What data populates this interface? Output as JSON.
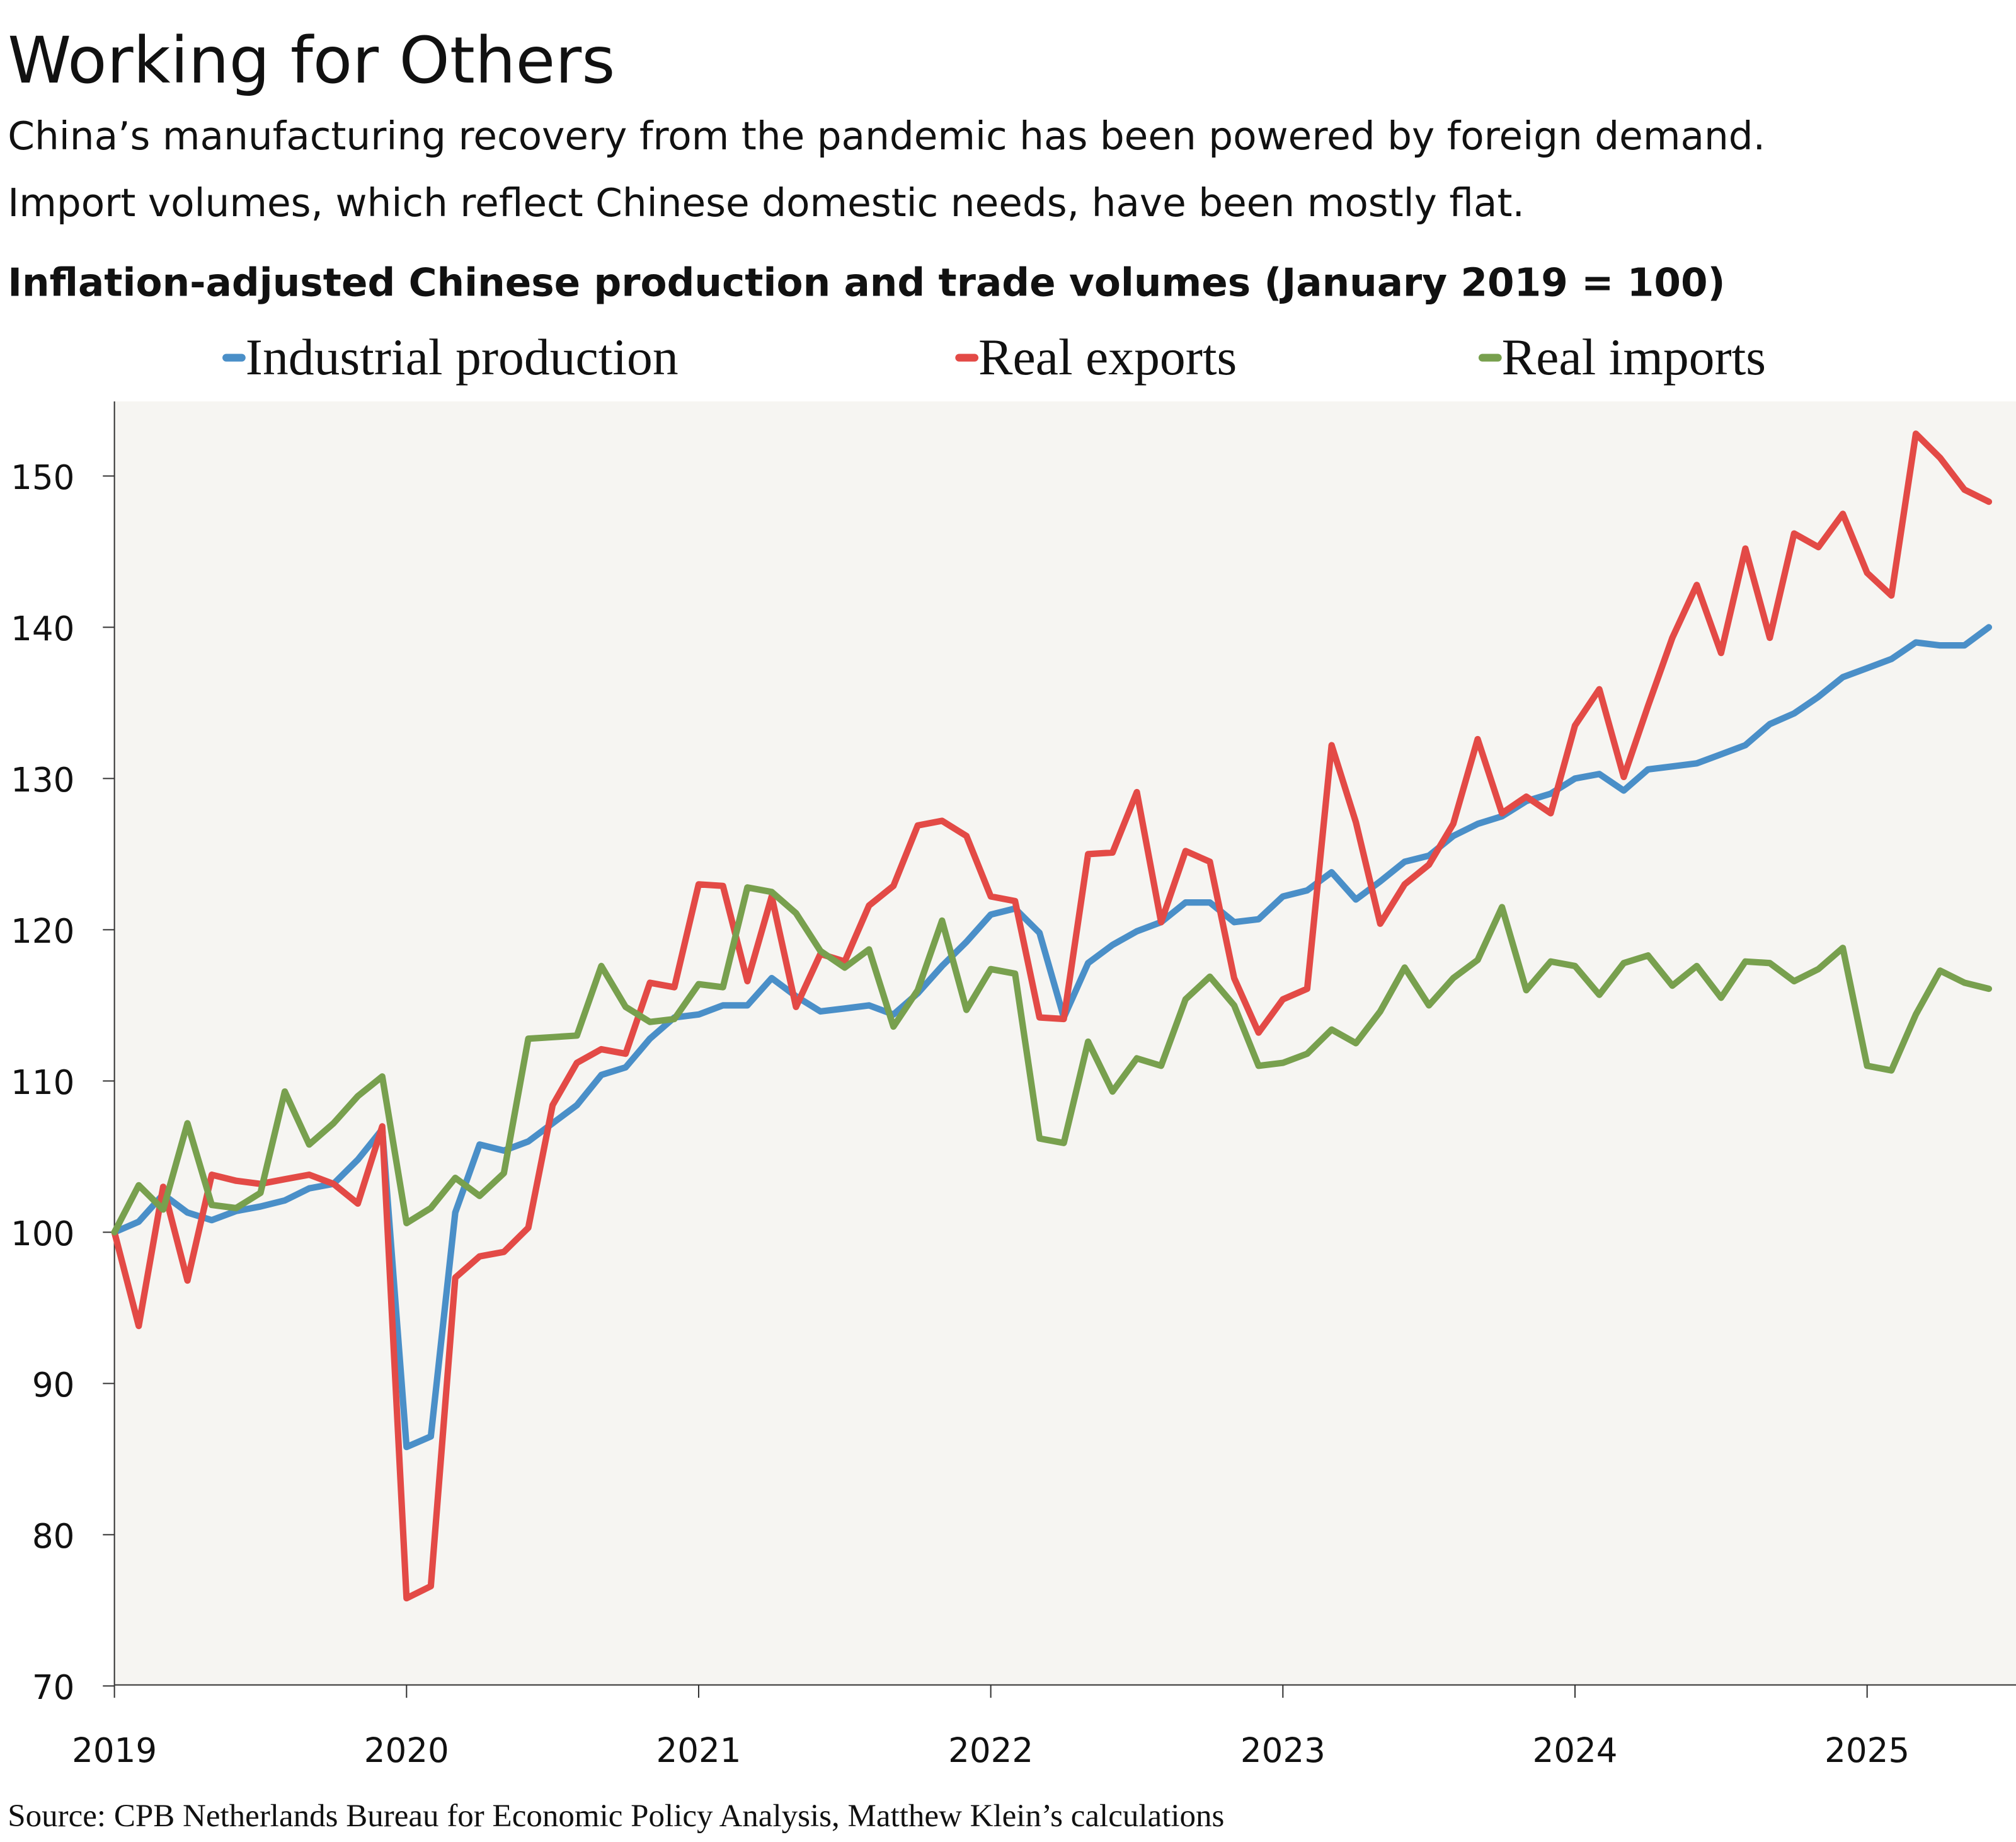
{
  "title": "Working for Others",
  "subtitle_lines": [
    "China’s manufacturing recovery from the pandemic has been powered by foreign demand.",
    "Import volumes, which reflect Chinese domestic needs, have been mostly flat."
  ],
  "source": "Source: CPB Netherlands Bureau for Economic Policy Analysis, Matthew Klein’s calculations",
  "chart_data": {
    "type": "line",
    "title": "Inflation-adjusted Chinese production and trade volumes (January 2019 = 100)",
    "xlabel": "",
    "ylabel": "",
    "x_start": "2019-01",
    "x_frequency": "monthly",
    "x_end": "2025-06",
    "xlim": [
      "2019-01",
      "2025-06"
    ],
    "ylim": [
      70,
      155
    ],
    "y_ticks": [
      70,
      80,
      90,
      100,
      110,
      120,
      130,
      140,
      150
    ],
    "x_ticks": [
      "2019",
      "2020",
      "2021",
      "2022",
      "2023",
      "2024",
      "2025"
    ],
    "grid": false,
    "legend_position": "top",
    "background": "#f6f5f2",
    "series": [
      {
        "name": "Industrial production",
        "color": "#4a8fc8",
        "values": [
          100,
          100.7,
          102.5,
          101.3,
          100.8,
          101.4,
          101.7,
          102.1,
          102.9,
          103.2,
          104.8,
          106.8,
          85.8,
          86.5,
          101.3,
          105.8,
          105.4,
          106.0,
          107.2,
          108.4,
          110.4,
          110.9,
          112.8,
          114.2,
          114.4,
          115.0,
          115.0,
          116.8,
          115.6,
          114.6,
          114.8,
          115.0,
          114.4,
          115.8,
          117.6,
          119.2,
          121.0,
          121.4,
          119.8,
          114.2,
          117.8,
          119.0,
          119.9,
          120.5,
          121.8,
          121.8,
          120.5,
          120.7,
          122.2,
          122.6,
          123.8,
          122.0,
          123.2,
          124.5,
          124.9,
          126.2,
          127.0,
          127.5,
          128.5,
          129.0,
          130.0,
          130.3,
          129.2,
          130.6,
          130.8,
          131.0,
          131.6,
          132.2,
          133.6,
          134.3,
          135.4,
          136.7,
          137.3,
          137.9,
          139.0,
          138.8,
          138.8,
          140.0
        ]
      },
      {
        "name": "Real exports",
        "color": "#e34a46",
        "values": [
          100,
          93.8,
          103.0,
          96.8,
          103.8,
          103.4,
          103.2,
          103.5,
          103.8,
          103.2,
          101.9,
          107.0,
          75.8,
          76.6,
          97.0,
          98.4,
          98.7,
          100.3,
          108.4,
          111.2,
          112.1,
          111.8,
          116.5,
          116.2,
          123.0,
          122.9,
          116.6,
          122.2,
          114.9,
          118.4,
          117.9,
          121.6,
          122.9,
          126.9,
          127.2,
          126.2,
          122.2,
          121.9,
          114.2,
          114.1,
          125.0,
          125.1,
          129.1,
          120.5,
          125.2,
          124.5,
          116.8,
          113.2,
          115.4,
          116.1,
          132.2,
          127.1,
          120.4,
          123.0,
          124.3,
          127.0,
          132.6,
          127.7,
          128.8,
          127.7,
          133.5,
          135.9,
          130.1,
          134.8,
          139.3,
          142.8,
          138.3,
          145.2,
          139.3,
          146.2,
          145.3,
          147.5,
          143.6,
          142.1,
          152.8,
          151.2,
          149.1,
          148.3
        ]
      },
      {
        "name": "Real imports",
        "color": "#78a04e",
        "values": [
          100,
          103.1,
          101.5,
          107.2,
          101.8,
          101.6,
          102.6,
          109.3,
          105.8,
          107.2,
          109.0,
          110.3,
          100.6,
          101.6,
          103.6,
          102.4,
          103.9,
          112.8,
          112.9,
          113.0,
          117.6,
          114.9,
          113.9,
          114.1,
          116.4,
          116.2,
          122.8,
          122.5,
          121.1,
          118.6,
          117.5,
          118.7,
          113.6,
          116.0,
          120.6,
          114.7,
          117.4,
          117.1,
          106.2,
          105.9,
          112.6,
          109.3,
          111.5,
          111.0,
          115.4,
          116.9,
          115.0,
          111.0,
          111.2,
          111.8,
          113.4,
          112.5,
          114.6,
          117.5,
          115.0,
          116.8,
          118.0,
          121.5,
          116.0,
          117.9,
          117.6,
          115.7,
          117.8,
          118.3,
          116.3,
          117.6,
          115.5,
          117.9,
          117.8,
          116.6,
          117.4,
          118.8,
          111.0,
          110.7,
          114.4,
          117.3,
          116.5,
          116.1
        ]
      }
    ]
  }
}
